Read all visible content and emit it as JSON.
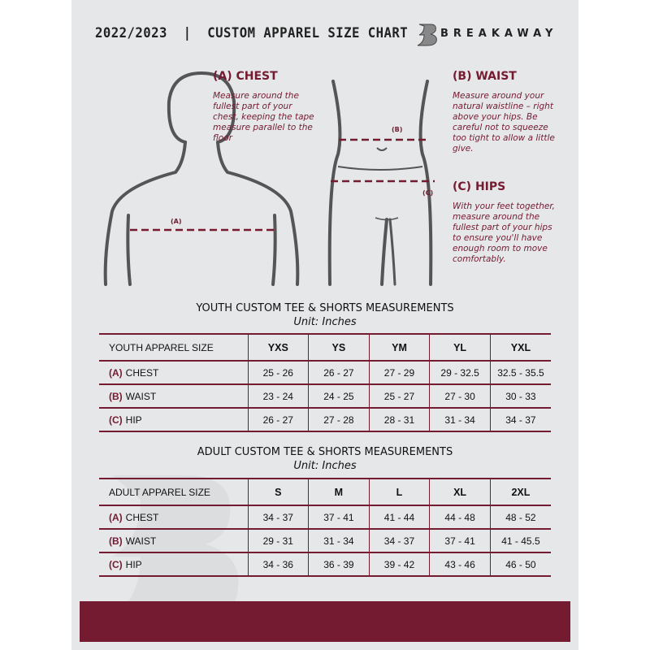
{
  "header": {
    "title": "2022/2023  |  CUSTOM APPAREL SIZE CHART",
    "brand": "BREAKAWAY",
    "brand_logo_letter": "B"
  },
  "guides": {
    "chest": {
      "heading": "(A) CHEST",
      "text": "Measure around the fullest part of your chest, keeping the tape measure parallel to the floor",
      "tag": "(A)"
    },
    "waist": {
      "heading": "(B) WAIST",
      "text": "Measure around your natural waistline – right above your hips. Be careful not to squeeze too tight to allow a little give.",
      "tag": "(B)"
    },
    "hips": {
      "heading": "(C) HIPS",
      "text": "With your feet together, measure around the fullest part of your hips to ensure you'll have enough room to move comfortably.",
      "tag": "(C)"
    }
  },
  "youth": {
    "title": "YOUTH CUSTOM TEE & SHORTS MEASUREMENTS",
    "unit": "Unit: Inches",
    "header": [
      "YOUTH APPAREL SIZE",
      "YXS",
      "YS",
      "YM",
      "YL",
      "YXL"
    ],
    "rows": [
      {
        "letter": "(A)",
        "label": "CHEST",
        "values": [
          "25 - 26",
          "26 - 27",
          "27 - 29",
          "29 - 32.5",
          "32.5 - 35.5"
        ]
      },
      {
        "letter": "(B)",
        "label": "WAIST",
        "values": [
          "23 - 24",
          "24 - 25",
          "25 - 27",
          "27 - 30",
          "30 - 33"
        ]
      },
      {
        "letter": "(C)",
        "label": "HIP",
        "values": [
          "26 - 27",
          "27 - 28",
          "28 - 31",
          "31 - 34",
          "34 - 37"
        ]
      }
    ]
  },
  "adult": {
    "title": "ADULT CUSTOM TEE & SHORTS MEASUREMENTS",
    "unit": "Unit: Inches",
    "header": [
      "ADULT APPAREL SIZE",
      "S",
      "M",
      "L",
      "XL",
      "2XL"
    ],
    "rows": [
      {
        "letter": "(A)",
        "label": "CHEST",
        "values": [
          "34 - 37",
          "37 - 41",
          "41 - 44",
          "44 - 48",
          "48 - 52"
        ]
      },
      {
        "letter": "(B)",
        "label": "WAIST",
        "values": [
          "29 - 31",
          "31 - 34",
          "34 - 37",
          "37 - 41",
          "41 - 45.5"
        ]
      },
      {
        "letter": "(C)",
        "label": "HIP",
        "values": [
          "34 - 36",
          "36 - 39",
          "39 - 42",
          "43 - 46",
          "46 - 50"
        ]
      }
    ]
  },
  "colors": {
    "accent": "#741b32",
    "background": "#e6e7e8"
  }
}
